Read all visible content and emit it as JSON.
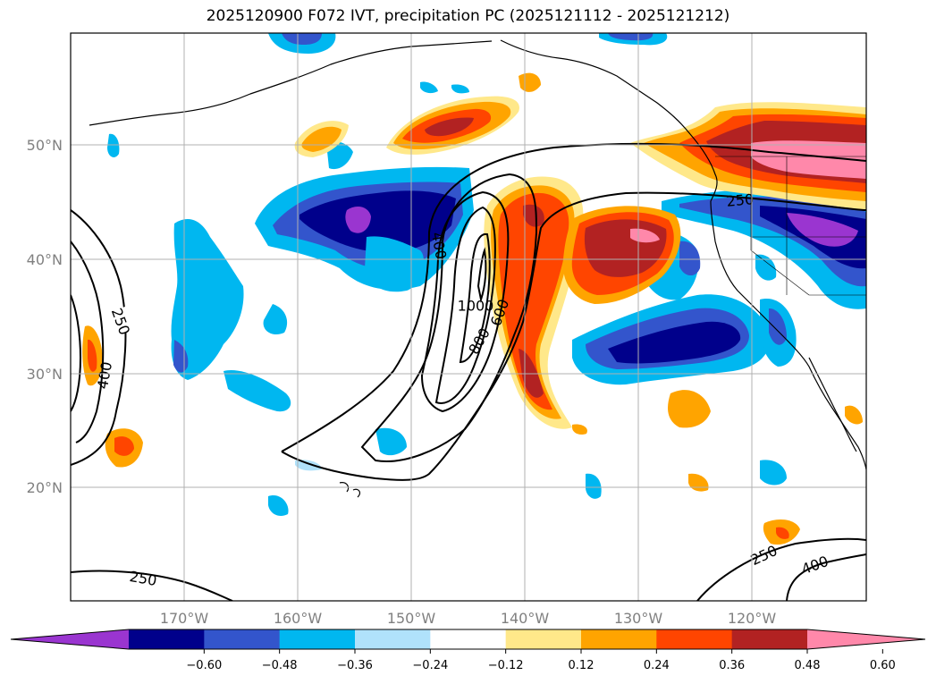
{
  "title": "2025120900 F072 IVT, precipitation PC (2025121112 - 2025121212)",
  "lat_labels": [
    "50°N",
    "40°N",
    "30°N",
    "20°N"
  ],
  "lon_labels": [
    "170°W",
    "160°W",
    "150°W",
    "140°W",
    "130°W",
    "120°W"
  ],
  "contour_labels": [
    "250",
    "400",
    "250",
    "400",
    "1000",
    "600",
    "800",
    "250",
    "250",
    "400"
  ],
  "colorbar": {
    "ticks": [
      "−0.60",
      "−0.48",
      "−0.36",
      "−0.24",
      "−0.12",
      "0.12",
      "0.24",
      "0.36",
      "0.48",
      "0.60"
    ],
    "colors": [
      "#9a35d0",
      "#00008b",
      "#3355cc",
      "#00b7f0",
      "#b0e2fb",
      "#ffffff",
      "#ffe88a",
      "#ffa400",
      "#ff4500",
      "#b22222",
      "#ff88aa"
    ]
  }
}
